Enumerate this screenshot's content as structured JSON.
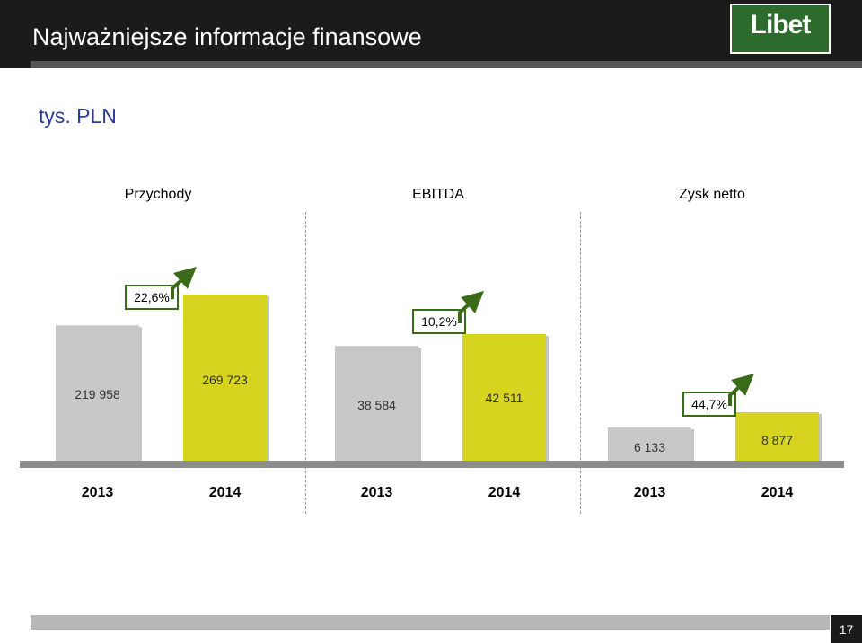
{
  "header": {
    "title": "Najważniejsze informacje finansowe",
    "logo_text": "Libet"
  },
  "unit_label": "tys. PLN",
  "page_number": "17",
  "colors": {
    "bar_2013": "#c8c8c8",
    "bar_2014": "#d6d41f",
    "arrow": "#3a6b18",
    "header": "#1b1b1b",
    "logo": "#2c6b2c"
  },
  "icons": [
    "growth-arrow-icon"
  ],
  "chart_data": {
    "type": "bar",
    "groups": [
      {
        "name": "Przychody",
        "categories": [
          "2013",
          "2014"
        ],
        "values": [
          219958,
          269723
        ],
        "value_labels": [
          "219 958",
          "269 723"
        ],
        "growth": "22,6%"
      },
      {
        "name": "EBITDA",
        "categories": [
          "2013",
          "2014"
        ],
        "values": [
          38584,
          42511
        ],
        "value_labels": [
          "38 584",
          "42 511"
        ],
        "growth": "10,2%"
      },
      {
        "name": "Zysk netto",
        "categories": [
          "2013",
          "2014"
        ],
        "values": [
          6133,
          8877
        ],
        "value_labels": [
          "6 133",
          "8 877"
        ],
        "growth": "44,7%"
      }
    ],
    "title": "",
    "grid": false
  }
}
